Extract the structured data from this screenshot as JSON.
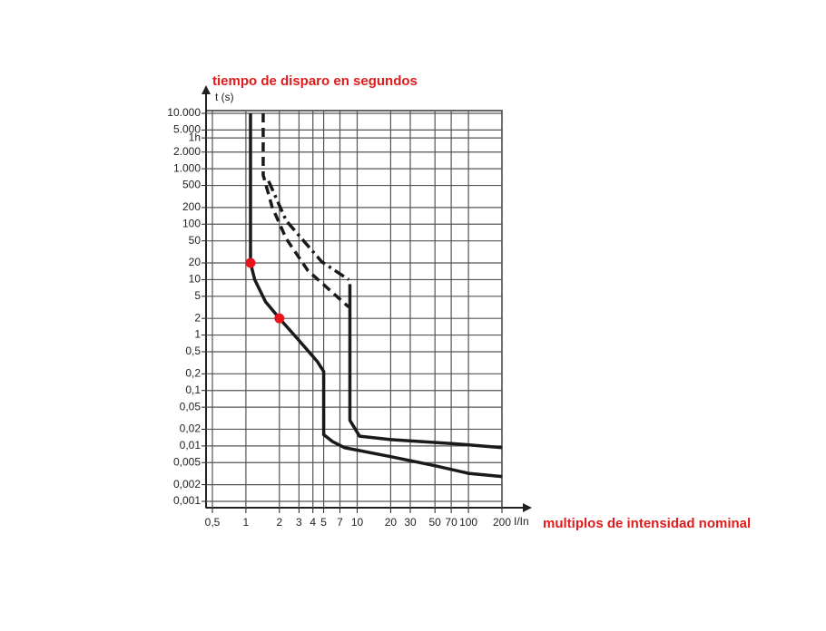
{
  "chart_data": {
    "type": "line",
    "ylabel": "t (s)",
    "xlabel": "I/In",
    "annotations": [
      "tiempo de disparo en segundos",
      "multiplos de intensidad nominal"
    ],
    "xscale": "log",
    "yscale": "log",
    "grid": true,
    "xlim": [
      0.5,
      200
    ],
    "ylim": [
      0.001,
      10000
    ],
    "xticks": [
      {
        "value": 0.5,
        "label": "0,5"
      },
      1,
      2,
      3,
      4,
      5,
      7,
      10,
      20,
      30,
      50,
      70,
      100,
      200
    ],
    "yticks": [
      {
        "value": 10000,
        "label": "10.000"
      },
      {
        "value": 5000,
        "label": "5.000"
      },
      {
        "value": 3600,
        "label": "1h"
      },
      {
        "value": 2000,
        "label": "2.000"
      },
      {
        "value": 1000,
        "label": "1.000"
      },
      500,
      200,
      100,
      50,
      20,
      10,
      5,
      2,
      1,
      {
        "value": 0.5,
        "label": "0,5"
      },
      {
        "value": 0.2,
        "label": "0,2"
      },
      {
        "value": 0.1,
        "label": "0,1"
      },
      {
        "value": 0.05,
        "label": "0,05"
      },
      {
        "value": 0.02,
        "label": "0,02"
      },
      {
        "value": 0.01,
        "label": "0,01"
      },
      {
        "value": 0.005,
        "label": "0,005"
      },
      {
        "value": 0.002,
        "label": "0,002"
      },
      {
        "value": 0.001,
        "label": "0,001"
      }
    ],
    "series": [
      {
        "color": "#1a1a1a",
        "dash": "solid",
        "x": [
          1.1,
          1.1,
          1.2,
          1.5,
          2,
          3,
          4.4,
          5,
          5,
          6,
          7.7,
          20,
          50,
          100,
          200
        ],
        "values": [
          10000,
          20,
          10,
          4,
          2,
          0.8,
          0.33,
          0.22,
          0.016,
          0.012,
          0.0093,
          0.0064,
          0.0044,
          0.0032,
          0.0028
        ]
      },
      {
        "color": "#1a1a1a",
        "dash": "solid",
        "x": [
          8.6,
          8.6,
          10.5,
          20,
          73,
          200
        ],
        "values": [
          8.3,
          0.029,
          0.015,
          0.013,
          0.011,
          0.0093
        ]
      },
      {
        "color": "#1a1a1a",
        "dash": "dashed",
        "x": [
          1.43,
          1.43,
          1.72,
          2.3,
          3.6,
          8.4
        ],
        "values": [
          10000,
          770,
          205,
          55,
          14.6,
          3.2
        ]
      },
      {
        "color": "#1a1a1a",
        "dash": "dashdot",
        "x": [
          1.6,
          2.3,
          4.8,
          8.4
        ],
        "values": [
          600,
          116,
          21,
          10
        ]
      }
    ],
    "points": {
      "color": "#e8141b",
      "x": [
        1.1,
        2
      ],
      "values": [
        20,
        2
      ]
    }
  }
}
